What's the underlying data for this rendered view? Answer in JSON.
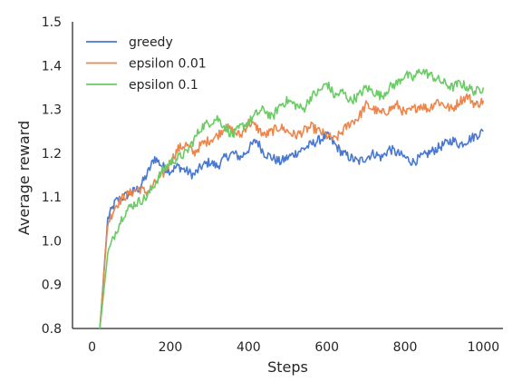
{
  "chart_data": {
    "type": "line",
    "xlabel": "Steps",
    "ylabel": "Average reward",
    "xlim": [
      -50,
      1050
    ],
    "ylim": [
      0.8,
      1.5
    ],
    "xticks": [
      0,
      200,
      400,
      600,
      800,
      1000
    ],
    "yticks": [
      0.8,
      0.9,
      1.0,
      1.1,
      1.2,
      1.3,
      1.4,
      1.5
    ],
    "xtick_labels": [
      "0",
      "200",
      "400",
      "600",
      "800",
      "1000"
    ],
    "ytick_labels": [
      "0.8",
      "0.9",
      "1.0",
      "1.1",
      "1.2",
      "1.3",
      "1.4",
      "1.5"
    ],
    "grid": false,
    "legend_position": "top-left",
    "x": [
      20,
      40,
      60,
      80,
      100,
      120,
      140,
      160,
      180,
      200,
      220,
      240,
      260,
      280,
      300,
      320,
      340,
      360,
      380,
      400,
      420,
      440,
      460,
      480,
      500,
      520,
      540,
      560,
      580,
      600,
      620,
      640,
      660,
      680,
      700,
      720,
      740,
      760,
      780,
      800,
      820,
      840,
      860,
      880,
      900,
      920,
      940,
      960,
      980,
      1000
    ],
    "series": [
      {
        "name": "greedy",
        "color": "#4878d0",
        "values": [
          0.8,
          1.05,
          1.09,
          1.1,
          1.11,
          1.12,
          1.15,
          1.19,
          1.17,
          1.16,
          1.17,
          1.16,
          1.15,
          1.17,
          1.18,
          1.17,
          1.19,
          1.2,
          1.19,
          1.21,
          1.23,
          1.2,
          1.19,
          1.18,
          1.19,
          1.2,
          1.21,
          1.22,
          1.23,
          1.24,
          1.22,
          1.2,
          1.19,
          1.18,
          1.19,
          1.2,
          1.19,
          1.21,
          1.2,
          1.19,
          1.18,
          1.19,
          1.2,
          1.21,
          1.22,
          1.23,
          1.22,
          1.23,
          1.24,
          1.25
        ]
      },
      {
        "name": "epsilon 0.01",
        "color": "#ee854a",
        "values": [
          0.8,
          1.04,
          1.08,
          1.1,
          1.11,
          1.12,
          1.11,
          1.13,
          1.15,
          1.18,
          1.21,
          1.22,
          1.2,
          1.22,
          1.23,
          1.24,
          1.26,
          1.25,
          1.24,
          1.27,
          1.26,
          1.24,
          1.25,
          1.26,
          1.25,
          1.24,
          1.25,
          1.26,
          1.25,
          1.24,
          1.23,
          1.25,
          1.27,
          1.28,
          1.31,
          1.3,
          1.29,
          1.3,
          1.31,
          1.29,
          1.3,
          1.31,
          1.3,
          1.32,
          1.31,
          1.3,
          1.32,
          1.33,
          1.31,
          1.32
        ]
      },
      {
        "name": "epsilon 0.1",
        "color": "#6acc64",
        "values": [
          0.8,
          0.97,
          1.02,
          1.06,
          1.08,
          1.09,
          1.1,
          1.13,
          1.16,
          1.18,
          1.19,
          1.2,
          1.23,
          1.26,
          1.27,
          1.28,
          1.26,
          1.24,
          1.26,
          1.27,
          1.29,
          1.3,
          1.28,
          1.31,
          1.32,
          1.31,
          1.3,
          1.33,
          1.34,
          1.36,
          1.33,
          1.34,
          1.32,
          1.33,
          1.35,
          1.34,
          1.33,
          1.35,
          1.36,
          1.38,
          1.37,
          1.39,
          1.38,
          1.37,
          1.36,
          1.35,
          1.36,
          1.35,
          1.34,
          1.35
        ]
      }
    ]
  }
}
